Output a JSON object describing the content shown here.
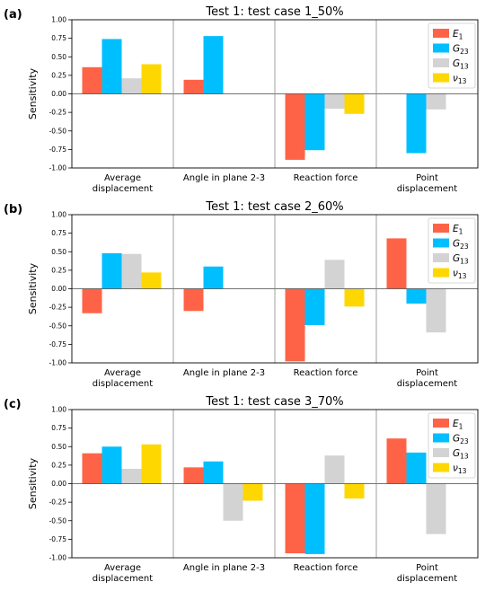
{
  "figure": {
    "panels": [
      {
        "label": "(a)",
        "title": "Test 1: test case 1_50%"
      },
      {
        "label": "(b)",
        "title": "Test 1: test case 2_60%"
      },
      {
        "label": "(c)",
        "title": "Test 1: test case 3_70%"
      }
    ]
  },
  "chart_data": [
    {
      "type": "bar",
      "title": "Test 1: test case 1_50%",
      "panel_label": "(a)",
      "ylabel": "Sensitivity",
      "ylim": [
        -1.0,
        1.0
      ],
      "yticks": [
        "-1.00",
        "-0.75",
        "-0.50",
        "-0.25",
        "0.00",
        "0.25",
        "0.50",
        "0.75",
        "1.00"
      ],
      "categories": [
        [
          "Average",
          "displacement"
        ],
        [
          "Angle in plane 2-3"
        ],
        [
          "Reaction force"
        ],
        [
          "Point",
          "displacement"
        ]
      ],
      "legend_position": "top-right",
      "grid": false,
      "series": [
        {
          "name": "E",
          "sub": "1",
          "color": "#FF6347",
          "values": [
            0.36,
            0.19,
            -0.89,
            null
          ]
        },
        {
          "name": "G",
          "sub": "23",
          "color": "#00BFFF",
          "values": [
            0.74,
            0.78,
            -0.76,
            -0.8
          ]
        },
        {
          "name": "G",
          "sub": "13",
          "color": "#D3D3D3",
          "values": [
            0.21,
            null,
            -0.2,
            -0.21
          ]
        },
        {
          "name": "ν",
          "sub": "13",
          "color": "#FFD700",
          "values": [
            0.4,
            null,
            -0.27,
            null
          ]
        }
      ]
    },
    {
      "type": "bar",
      "title": "Test 1: test case 2_60%",
      "panel_label": "(b)",
      "ylabel": "Sensitivity",
      "ylim": [
        -1.0,
        1.0
      ],
      "yticks": [
        "-1.00",
        "-0.75",
        "-0.50",
        "-0.25",
        "0.00",
        "0.25",
        "0.50",
        "0.75",
        "1.00"
      ],
      "categories": [
        [
          "Average",
          "displacement"
        ],
        [
          "Angle in plane 2-3"
        ],
        [
          "Reaction force"
        ],
        [
          "Point",
          "displacement"
        ]
      ],
      "legend_position": "top-right",
      "grid": false,
      "series": [
        {
          "name": "E",
          "sub": "1",
          "color": "#FF6347",
          "values": [
            -0.33,
            -0.3,
            -0.98,
            0.68
          ]
        },
        {
          "name": "G",
          "sub": "23",
          "color": "#00BFFF",
          "values": [
            0.48,
            0.3,
            -0.49,
            -0.2
          ]
        },
        {
          "name": "G",
          "sub": "13",
          "color": "#D3D3D3",
          "values": [
            0.47,
            null,
            0.39,
            -0.59
          ]
        },
        {
          "name": "ν",
          "sub": "13",
          "color": "#FFD700",
          "values": [
            0.22,
            null,
            -0.24,
            null
          ]
        }
      ]
    },
    {
      "type": "bar",
      "title": "Test 1: test case 3_70%",
      "panel_label": "(c)",
      "ylabel": "Sensitivity",
      "ylim": [
        -1.0,
        1.0
      ],
      "yticks": [
        "-1.00",
        "-0.75",
        "-0.50",
        "-0.25",
        "0.00",
        "0.25",
        "0.50",
        "0.75",
        "1.00"
      ],
      "categories": [
        [
          "Average",
          "displacement"
        ],
        [
          "Angle in plane 2-3"
        ],
        [
          "Reaction force"
        ],
        [
          "Point",
          "displacement"
        ]
      ],
      "legend_position": "top-right",
      "grid": false,
      "series": [
        {
          "name": "E",
          "sub": "1",
          "color": "#FF6347",
          "values": [
            0.41,
            0.22,
            -0.94,
            0.61
          ]
        },
        {
          "name": "G",
          "sub": "23",
          "color": "#00BFFF",
          "values": [
            0.5,
            0.3,
            -0.95,
            0.42
          ]
        },
        {
          "name": "G",
          "sub": "13",
          "color": "#D3D3D3",
          "values": [
            0.2,
            -0.5,
            0.38,
            -0.68
          ]
        },
        {
          "name": "ν",
          "sub": "13",
          "color": "#FFD700",
          "values": [
            0.53,
            -0.23,
            -0.2,
            null
          ]
        }
      ]
    }
  ]
}
